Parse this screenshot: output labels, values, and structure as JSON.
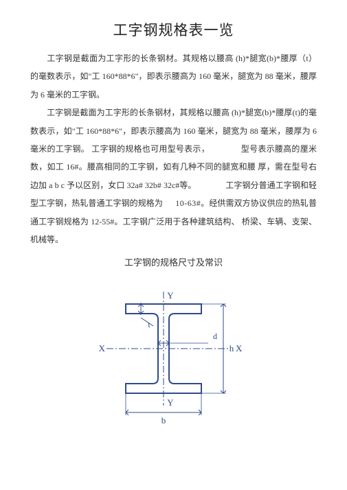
{
  "title": "工字钢规格表一览",
  "para1": "工字钢是截面为工字形的长条钢材。其规格以腰高 (h)*腿宽(b)*腰厚（t）的毫数表示，如\"工 160*88*6\"，即表示腰高为 160 毫米，腿宽为 88 毫米，腰厚为 6 毫米的工字钢。",
  "para2_a": "工字钢是截面为工字形的长条钢材，其规格以腰高 (h)*腿宽(b)*腰厚(t)的毫数表示，如\"工 160*88*6\"，即表示腰高为 160 毫米，腿宽为 88 毫米，腰厚为 6 毫米的工字钢。 工字钢的规格也可用型号表示，",
  "para2_gap1": "型号表示",
  "para2_b": "腰高的厘米数，如工 16#。腰高相同的工字钢，如有几种不同的腿宽和腰 厚，需在型号右边加 a b c 予以区别，女口 32a# 32b# 32c#等。",
  "para2_gap2": "工字钢分",
  "para2_c": "普通工字钢和轻型工字钢，热轧普通工字钢的规格为",
  "para2_num1": "10-63#",
  "para2_d": "。经供需双方协议供应的热轧普通工字钢规格为 12-55#。工字钢广泛用于各种建筑结构、 桥梁、车辆、支架、机械等。",
  "subtitle": "工字钢的规格尺寸及常识",
  "diagram": {
    "stroke_main": "#2e4a8c",
    "stroke_dash": "#2e4a8c",
    "label_color": "#2e4a8c",
    "arrow_color": "#2e4a8c",
    "bg": "#ffffff",
    "labels": {
      "Y_top": "Y",
      "Y_bot": "Y",
      "X_left": "X",
      "X_right": "X",
      "t": "t",
      "d": "d",
      "h": "h",
      "b": "b"
    }
  }
}
